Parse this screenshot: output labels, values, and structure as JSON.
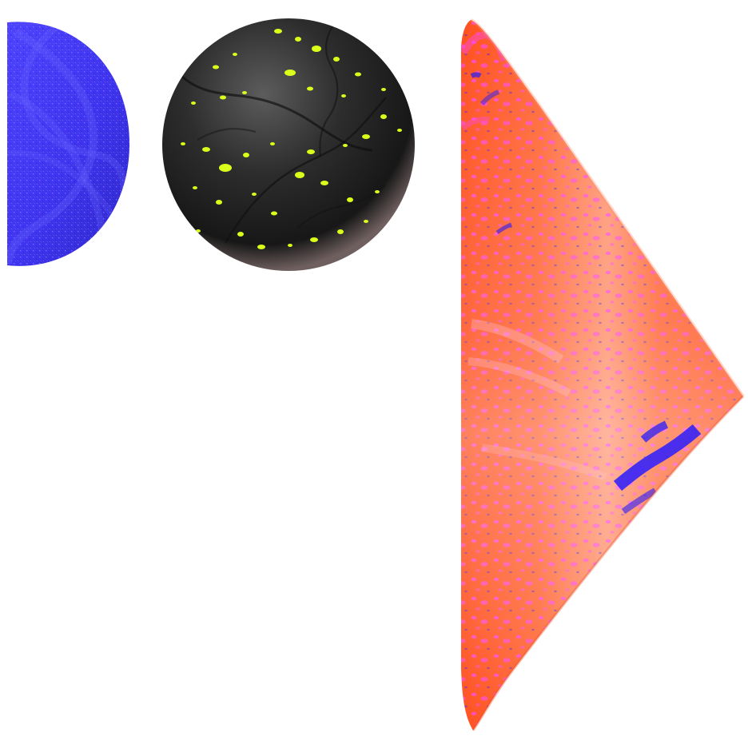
{
  "scene": {
    "background": "#ffffff",
    "objects": [
      {
        "name": "half-disc",
        "shape": "half-disc",
        "base_color": "#3f34f0",
        "pattern_colors": [
          "#6a63ff",
          "#2c27c8",
          "#ff3d74",
          "#33d0b7"
        ]
      },
      {
        "name": "speckled-sphere",
        "shape": "sphere",
        "base_color": "#202020",
        "pattern_colors": [
          "#d9ff1a",
          "#4b4b4b",
          "#8c7b7b"
        ]
      },
      {
        "name": "cone",
        "shape": "cone",
        "base_color": "#ff5b2e",
        "pattern_colors": [
          "#ff48f5",
          "#2a1cff",
          "#ffb08a"
        ]
      }
    ]
  }
}
